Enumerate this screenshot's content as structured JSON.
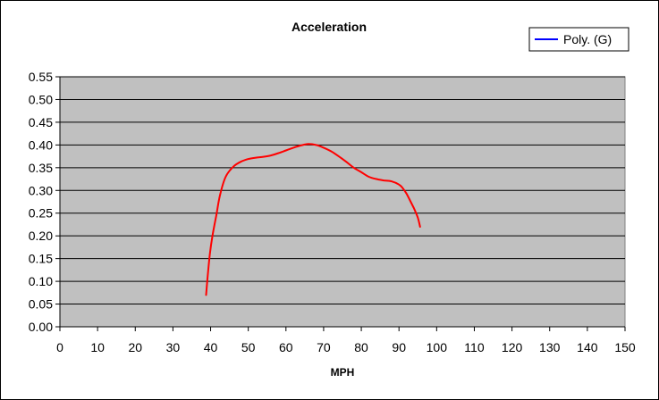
{
  "chart_data": {
    "type": "line",
    "title": "Acceleration",
    "xlabel": "MPH",
    "ylabel": "",
    "xlim": [
      0,
      150
    ],
    "ylim": [
      0,
      0.55
    ],
    "x_ticks": [
      "0",
      "10",
      "20",
      "30",
      "40",
      "50",
      "60",
      "70",
      "80",
      "90",
      "100",
      "110",
      "120",
      "130",
      "140",
      "150"
    ],
    "y_ticks": [
      "0.00",
      "0.05",
      "0.10",
      "0.15",
      "0.20",
      "0.25",
      "0.30",
      "0.35",
      "0.40",
      "0.45",
      "0.50",
      "0.55"
    ],
    "grid": "horizontal",
    "legend": "top-right",
    "colors": {
      "plot_bg": "#c0c0c0",
      "series_line": "#ff0000",
      "legend_line": "#0000ff"
    },
    "series": [
      {
        "name": "Poly. (G)",
        "x": [
          38.8,
          39.2,
          39.8,
          40.5,
          41.5,
          42.5,
          44,
          46,
          48,
          50,
          52,
          54,
          56,
          58,
          60,
          62,
          64,
          66,
          68,
          70,
          72,
          74,
          76,
          78,
          80,
          82,
          84,
          86,
          88,
          90,
          91,
          92,
          93,
          94,
          95,
          95.6
        ],
        "y": [
          0.07,
          0.11,
          0.16,
          0.2,
          0.245,
          0.29,
          0.33,
          0.352,
          0.363,
          0.369,
          0.372,
          0.374,
          0.377,
          0.382,
          0.388,
          0.394,
          0.399,
          0.402,
          0.4,
          0.394,
          0.386,
          0.375,
          0.363,
          0.35,
          0.34,
          0.33,
          0.325,
          0.322,
          0.32,
          0.313,
          0.305,
          0.293,
          0.277,
          0.26,
          0.24,
          0.22
        ]
      }
    ]
  }
}
